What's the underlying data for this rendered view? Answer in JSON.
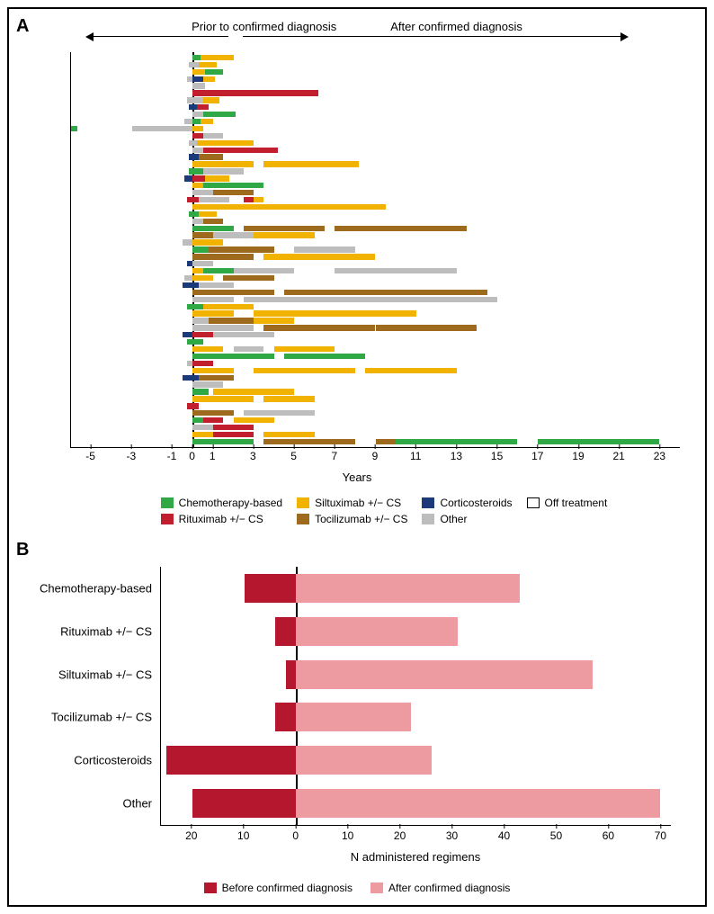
{
  "panelA": {
    "label": "A",
    "header_left": "Prior to confirmed diagnosis",
    "header_right": "After confirmed diagnosis",
    "xaxis": {
      "min": -6,
      "max": 24,
      "ticks": [
        -5,
        -3,
        -1,
        0,
        1,
        3,
        5,
        7,
        9,
        11,
        13,
        15,
        17,
        19,
        21,
        23
      ],
      "label": "Years"
    },
    "colors": {
      "chemo": "#2fa845",
      "rituximab": "#c21f2e",
      "siltuximab": "#f2b200",
      "tocilizumab": "#9e6b1e",
      "corticosteroids": "#1c3a7a",
      "other": "#bdbdbd",
      "off": "#ffffff"
    },
    "legend": [
      {
        "key": "chemo",
        "label": "Chemotherapy-based"
      },
      {
        "key": "siltuximab",
        "label": "Siltuximab +/− CS"
      },
      {
        "key": "corticosteroids",
        "label": "Corticosteroids"
      },
      {
        "key": "off",
        "label": "Off treatment",
        "outline": true
      },
      {
        "key": "rituximab",
        "label": "Rituximab +/− CS"
      },
      {
        "key": "tocilizumab",
        "label": "Tocilizumab +/− CS"
      },
      {
        "key": "other",
        "label": "Other"
      }
    ],
    "rows": [
      [
        {
          "s": 0,
          "e": 0.4,
          "c": "chemo"
        },
        {
          "s": 0.4,
          "e": 2,
          "c": "siltuximab"
        }
      ],
      [
        {
          "s": -0.2,
          "e": 0.3,
          "c": "other"
        },
        {
          "s": 0.3,
          "e": 1.2,
          "c": "siltuximab"
        }
      ],
      [
        {
          "s": 0,
          "e": 0.6,
          "c": "siltuximab"
        },
        {
          "s": 0.6,
          "e": 1.5,
          "c": "chemo"
        }
      ],
      [
        {
          "s": -0.3,
          "e": 0,
          "c": "other"
        },
        {
          "s": 0,
          "e": 0.5,
          "c": "corticosteroids"
        },
        {
          "s": 0.5,
          "e": 1.1,
          "c": "siltuximab"
        }
      ],
      [
        {
          "s": 0,
          "e": 0.6,
          "c": "other"
        }
      ],
      [
        {
          "s": 0,
          "e": 0.3,
          "c": "rituximab"
        },
        {
          "s": 0.3,
          "e": 6.2,
          "c": "rituximab"
        }
      ],
      [
        {
          "s": -0.3,
          "e": 0.5,
          "c": "other"
        },
        {
          "s": 0.5,
          "e": 1.3,
          "c": "siltuximab"
        }
      ],
      [
        {
          "s": -0.2,
          "e": 0.2,
          "c": "corticosteroids"
        },
        {
          "s": 0.2,
          "e": 0.8,
          "c": "rituximab"
        }
      ],
      [
        {
          "s": 0,
          "e": 0.5,
          "c": "other"
        },
        {
          "s": 0.5,
          "e": 2.1,
          "c": "chemo"
        }
      ],
      [
        {
          "s": -0.4,
          "e": 0,
          "c": "other"
        },
        {
          "s": 0,
          "e": 0.4,
          "c": "chemo"
        },
        {
          "s": 0.4,
          "e": 1,
          "c": "siltuximab"
        }
      ],
      [
        {
          "s": -6,
          "e": -5.7,
          "c": "chemo"
        },
        {
          "s": -3,
          "e": 0,
          "c": "other"
        },
        {
          "s": 0,
          "e": 0.5,
          "c": "siltuximab"
        }
      ],
      [
        {
          "s": 0,
          "e": 0.5,
          "c": "rituximab"
        },
        {
          "s": 0.5,
          "e": 1.5,
          "c": "other"
        }
      ],
      [
        {
          "s": -0.2,
          "e": 0.2,
          "c": "other"
        },
        {
          "s": 0.2,
          "e": 3,
          "c": "siltuximab"
        }
      ],
      [
        {
          "s": 0,
          "e": 0.5,
          "c": "other"
        },
        {
          "s": 0.5,
          "e": 4.2,
          "c": "rituximab"
        }
      ],
      [
        {
          "s": -0.2,
          "e": 0.3,
          "c": "corticosteroids"
        },
        {
          "s": 0.3,
          "e": 1.5,
          "c": "tocilizumab"
        }
      ],
      [
        {
          "s": 0,
          "e": 3,
          "c": "siltuximab"
        },
        {
          "s": 3.5,
          "e": 8.2,
          "c": "siltuximab"
        }
      ],
      [
        {
          "s": -0.2,
          "e": 0.5,
          "c": "chemo"
        },
        {
          "s": 0.5,
          "e": 2.5,
          "c": "other"
        }
      ],
      [
        {
          "s": -0.4,
          "e": 0,
          "c": "corticosteroids"
        },
        {
          "s": 0,
          "e": 0.6,
          "c": "rituximab"
        },
        {
          "s": 0.6,
          "e": 1.8,
          "c": "siltuximab"
        }
      ],
      [
        {
          "s": 0,
          "e": 0.5,
          "c": "siltuximab"
        },
        {
          "s": 0.5,
          "e": 3.5,
          "c": "chemo"
        }
      ],
      [
        {
          "s": 0,
          "e": 1,
          "c": "other"
        },
        {
          "s": 1,
          "e": 3,
          "c": "tocilizumab"
        }
      ],
      [
        {
          "s": -0.3,
          "e": 0.3,
          "c": "rituximab"
        },
        {
          "s": 0.3,
          "e": 1.8,
          "c": "other"
        },
        {
          "s": 2.5,
          "e": 3,
          "c": "rituximab"
        },
        {
          "s": 3,
          "e": 3.5,
          "c": "siltuximab"
        }
      ],
      [
        {
          "s": 0,
          "e": 2,
          "c": "siltuximab"
        },
        {
          "s": 2,
          "e": 5,
          "c": "siltuximab"
        },
        {
          "s": 5,
          "e": 9.5,
          "c": "siltuximab"
        }
      ],
      [
        {
          "s": -0.2,
          "e": 0.3,
          "c": "chemo"
        },
        {
          "s": 0.3,
          "e": 1.2,
          "c": "siltuximab"
        }
      ],
      [
        {
          "s": 0,
          "e": 0.5,
          "c": "other"
        },
        {
          "s": 0.5,
          "e": 1.5,
          "c": "tocilizumab"
        }
      ],
      [
        {
          "s": 0,
          "e": 2,
          "c": "chemo"
        },
        {
          "s": 2.5,
          "e": 6.5,
          "c": "tocilizumab"
        },
        {
          "s": 7,
          "e": 13.5,
          "c": "tocilizumab"
        }
      ],
      [
        {
          "s": 0,
          "e": 1,
          "c": "tocilizumab"
        },
        {
          "s": 1,
          "e": 3,
          "c": "other"
        },
        {
          "s": 3,
          "e": 6,
          "c": "siltuximab"
        }
      ],
      [
        {
          "s": -0.5,
          "e": 0,
          "c": "other"
        },
        {
          "s": 0,
          "e": 1.5,
          "c": "siltuximab"
        }
      ],
      [
        {
          "s": 0,
          "e": 0.8,
          "c": "chemo"
        },
        {
          "s": 0.8,
          "e": 4,
          "c": "tocilizumab"
        },
        {
          "s": 5,
          "e": 8,
          "c": "other"
        }
      ],
      [
        {
          "s": 0,
          "e": 3,
          "c": "tocilizumab"
        },
        {
          "s": 3.5,
          "e": 9,
          "c": "siltuximab"
        }
      ],
      [
        {
          "s": -0.3,
          "e": 0,
          "c": "corticosteroids"
        },
        {
          "s": 0,
          "e": 1,
          "c": "other"
        }
      ],
      [
        {
          "s": 0,
          "e": 0.5,
          "c": "siltuximab"
        },
        {
          "s": 0.5,
          "e": 2,
          "c": "chemo"
        },
        {
          "s": 2,
          "e": 5,
          "c": "other"
        },
        {
          "s": 7,
          "e": 13,
          "c": "other"
        }
      ],
      [
        {
          "s": -0.4,
          "e": 0,
          "c": "other"
        },
        {
          "s": 0,
          "e": 1,
          "c": "siltuximab"
        },
        {
          "s": 1.5,
          "e": 4,
          "c": "tocilizumab"
        }
      ],
      [
        {
          "s": -0.5,
          "e": 0.3,
          "c": "corticosteroids"
        },
        {
          "s": 0.3,
          "e": 2,
          "c": "other"
        }
      ],
      [
        {
          "s": 0,
          "e": 4,
          "c": "tocilizumab"
        },
        {
          "s": 4.5,
          "e": 14.5,
          "c": "tocilizumab"
        }
      ],
      [
        {
          "s": 0,
          "e": 2,
          "c": "other"
        },
        {
          "s": 2.5,
          "e": 15,
          "c": "other"
        }
      ],
      [
        {
          "s": -0.3,
          "e": 0.5,
          "c": "chemo"
        },
        {
          "s": 0.5,
          "e": 3,
          "c": "siltuximab"
        }
      ],
      [
        {
          "s": 0,
          "e": 2,
          "c": "siltuximab"
        },
        {
          "s": 3,
          "e": 11,
          "c": "siltuximab"
        }
      ],
      [
        {
          "s": 0,
          "e": 0.8,
          "c": "other"
        },
        {
          "s": 0.8,
          "e": 3,
          "c": "tocilizumab"
        },
        {
          "s": 3,
          "e": 5,
          "c": "siltuximab"
        }
      ],
      [
        {
          "s": 0,
          "e": 3,
          "c": "other"
        },
        {
          "s": 3.5,
          "e": 9,
          "c": "tocilizumab"
        },
        {
          "s": 9,
          "e": 14,
          "c": "tocilizumab"
        }
      ],
      [
        {
          "s": -0.5,
          "e": 0,
          "c": "corticosteroids"
        },
        {
          "s": 0,
          "e": 1,
          "c": "rituximab"
        },
        {
          "s": 1,
          "e": 4,
          "c": "other"
        }
      ],
      [
        {
          "s": -0.3,
          "e": 0.5,
          "c": "chemo"
        }
      ],
      [
        {
          "s": 0,
          "e": 1.5,
          "c": "siltuximab"
        },
        {
          "s": 2,
          "e": 3.5,
          "c": "other"
        },
        {
          "s": 4,
          "e": 7,
          "c": "siltuximab"
        }
      ],
      [
        {
          "s": 0,
          "e": 4,
          "c": "chemo"
        },
        {
          "s": 4.5,
          "e": 8.5,
          "c": "chemo"
        }
      ],
      [
        {
          "s": -0.3,
          "e": 0,
          "c": "other"
        },
        {
          "s": 0,
          "e": 1,
          "c": "rituximab"
        }
      ],
      [
        {
          "s": 0,
          "e": 2,
          "c": "siltuximab"
        },
        {
          "s": 3,
          "e": 8,
          "c": "siltuximab"
        },
        {
          "s": 8.5,
          "e": 13,
          "c": "siltuximab"
        }
      ],
      [
        {
          "s": -0.5,
          "e": 0.3,
          "c": "corticosteroids"
        },
        {
          "s": 0.3,
          "e": 2,
          "c": "tocilizumab"
        }
      ],
      [
        {
          "s": 0,
          "e": 1.5,
          "c": "other"
        }
      ],
      [
        {
          "s": 0,
          "e": 0.8,
          "c": "chemo"
        },
        {
          "s": 1,
          "e": 5,
          "c": "siltuximab"
        }
      ],
      [
        {
          "s": 0,
          "e": 3,
          "c": "siltuximab"
        },
        {
          "s": 3.5,
          "e": 6,
          "c": "siltuximab"
        }
      ],
      [
        {
          "s": -0.3,
          "e": 0.3,
          "c": "rituximab"
        }
      ],
      [
        {
          "s": 0,
          "e": 2,
          "c": "tocilizumab"
        },
        {
          "s": 2.5,
          "e": 6,
          "c": "other"
        }
      ],
      [
        {
          "s": 0,
          "e": 0.5,
          "c": "chemo"
        },
        {
          "s": 0.5,
          "e": 1.5,
          "c": "rituximab"
        },
        {
          "s": 2,
          "e": 4,
          "c": "siltuximab"
        }
      ],
      [
        {
          "s": 0,
          "e": 1,
          "c": "other"
        },
        {
          "s": 1,
          "e": 3,
          "c": "rituximab"
        }
      ],
      [
        {
          "s": 0,
          "e": 1,
          "c": "siltuximab"
        },
        {
          "s": 1,
          "e": 3,
          "c": "rituximab"
        },
        {
          "s": 3.5,
          "e": 6,
          "c": "siltuximab"
        }
      ],
      [
        {
          "s": 0,
          "e": 3,
          "c": "chemo"
        },
        {
          "s": 3.5,
          "e": 8,
          "c": "tocilizumab"
        },
        {
          "s": 9,
          "e": 14,
          "c": "tocilizumab"
        },
        {
          "s": 10,
          "e": 16,
          "c": "chemo"
        },
        {
          "s": 17,
          "e": 23,
          "c": "chemo"
        }
      ]
    ]
  },
  "panelB": {
    "label": "B",
    "xaxis": {
      "min": -26,
      "max": 72,
      "ticks": [
        -20,
        -10,
        0,
        10,
        20,
        30,
        40,
        50,
        60,
        70
      ],
      "tick_labels": [
        "20",
        "10",
        "0",
        "10",
        "20",
        "30",
        "40",
        "50",
        "60",
        "70"
      ],
      "label": "N administered regimens"
    },
    "colors": {
      "before": "#b4172e",
      "after": "#ed9aa0"
    },
    "categories": [
      {
        "label": "Chemotherapy-based",
        "before": 10,
        "after": 43
      },
      {
        "label": "Rituximab +/− CS",
        "before": 4,
        "after": 31
      },
      {
        "label": "Siltuximab +/− CS",
        "before": 2,
        "after": 57
      },
      {
        "label": "Tocilizumab +/− CS",
        "before": 4,
        "after": 22
      },
      {
        "label": "Corticosteroids",
        "before": 25,
        "after": 26
      },
      {
        "label": "Other",
        "before": 20,
        "after": 70
      }
    ],
    "legend": [
      {
        "key": "before",
        "label": "Before confirmed diagnosis"
      },
      {
        "key": "after",
        "label": "After confirmed diagnosis"
      }
    ]
  }
}
